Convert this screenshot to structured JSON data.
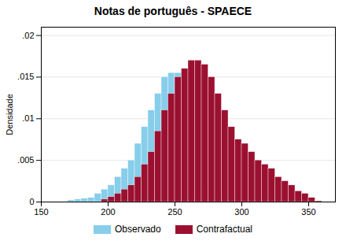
{
  "chart_data": {
    "type": "histogram",
    "title": "Notas de português - SPAECE",
    "ylabel": "Densidade",
    "xlim": [
      150,
      370
    ],
    "ylim": [
      0,
      0.021
    ],
    "xticks": [
      150,
      200,
      250,
      300,
      350
    ],
    "yticks": [
      0,
      {
        "value": 0.005,
        "label": ".005"
      },
      {
        "value": 0.01,
        "label": ".01"
      },
      {
        "value": 0.015,
        "label": ".015"
      },
      {
        "value": 0.02,
        "label": ".02"
      }
    ],
    "grid": true,
    "legend": "bottom",
    "series": [
      {
        "name": "Observado",
        "color": "#87CEEB",
        "bins": [
          170,
          175,
          180,
          185,
          190,
          195,
          200,
          205,
          210,
          215,
          220,
          225,
          230,
          235,
          240,
          245,
          250,
          255,
          260,
          265,
          270,
          275
        ],
        "values": [
          0.0002,
          0.0003,
          0.0004,
          0.0005,
          0.001,
          0.0015,
          0.002,
          0.003,
          0.004,
          0.005,
          0.007,
          0.009,
          0.011,
          0.013,
          0.015,
          0.0155,
          0.0155,
          0.013,
          0.009,
          0.005,
          0.002
        ]
      },
      {
        "name": "Contrafactual",
        "color": "#9B1030",
        "bins": [
          195,
          200,
          205,
          210,
          215,
          220,
          225,
          230,
          235,
          240,
          245,
          250,
          255,
          260,
          265,
          270,
          275,
          280,
          285,
          290,
          295,
          300,
          305,
          310,
          315,
          320,
          325,
          330,
          335,
          340,
          345,
          350,
          355,
          360
        ],
        "values": [
          0.0003,
          0.0006,
          0.001,
          0.0015,
          0.002,
          0.003,
          0.0045,
          0.006,
          0.0085,
          0.011,
          0.013,
          0.015,
          0.016,
          0.017,
          0.017,
          0.0165,
          0.015,
          0.013,
          0.011,
          0.009,
          0.0075,
          0.007,
          0.006,
          0.005,
          0.0045,
          0.004,
          0.003,
          0.0025,
          0.002,
          0.0013,
          0.001,
          0.0005,
          0.0001
        ]
      }
    ],
    "lines": [
      {
        "color": "#87CEEB",
        "line_style": "dashed",
        "x": [
          150,
          170
        ],
        "values": [
          0,
          0
        ]
      },
      {
        "color": "#9B1030",
        "line_style": "dashed",
        "x": [
          355,
          370
        ],
        "values": [
          0,
          0
        ]
      }
    ]
  }
}
